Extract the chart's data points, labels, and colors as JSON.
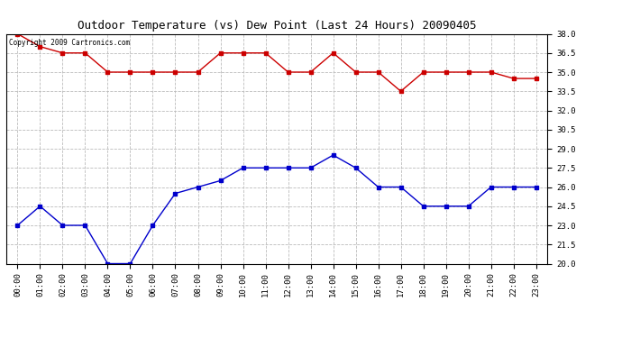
{
  "title": "Outdoor Temperature (vs) Dew Point (Last 24 Hours) 20090405",
  "copyright_text": "Copyright 2009 Cartronics.com",
  "x_labels": [
    "00:00",
    "01:00",
    "02:00",
    "03:00",
    "04:00",
    "05:00",
    "06:00",
    "07:00",
    "08:00",
    "09:00",
    "10:00",
    "11:00",
    "12:00",
    "13:00",
    "14:00",
    "15:00",
    "16:00",
    "17:00",
    "18:00",
    "19:00",
    "20:00",
    "21:00",
    "22:00",
    "23:00"
  ],
  "temp_data": [
    38.0,
    37.0,
    36.5,
    36.5,
    35.0,
    35.0,
    35.0,
    35.0,
    35.0,
    36.5,
    36.5,
    36.5,
    35.0,
    35.0,
    36.5,
    35.0,
    35.0,
    33.5,
    35.0,
    35.0,
    35.0,
    35.0,
    34.5,
    34.5
  ],
  "dew_data": [
    23.0,
    24.5,
    23.0,
    23.0,
    20.0,
    20.0,
    23.0,
    25.5,
    26.0,
    26.5,
    27.5,
    27.5,
    27.5,
    27.5,
    28.5,
    27.5,
    26.0,
    26.0,
    24.5,
    24.5,
    24.5,
    26.0,
    26.0,
    26.0
  ],
  "temp_color": "#cc0000",
  "dew_color": "#0000cc",
  "background_color": "#ffffff",
  "plot_bg_color": "#ffffff",
  "grid_color": "#bbbbbb",
  "ylim_min": 20.0,
  "ylim_max": 38.0,
  "yticks": [
    20.0,
    21.5,
    23.0,
    24.5,
    26.0,
    27.5,
    29.0,
    30.5,
    32.0,
    33.5,
    35.0,
    36.5,
    38.0
  ],
  "title_fontsize": 9,
  "tick_fontsize": 6.5,
  "copyright_fontsize": 5.5,
  "marker": "s",
  "marker_size": 2.5,
  "linewidth": 1.0
}
